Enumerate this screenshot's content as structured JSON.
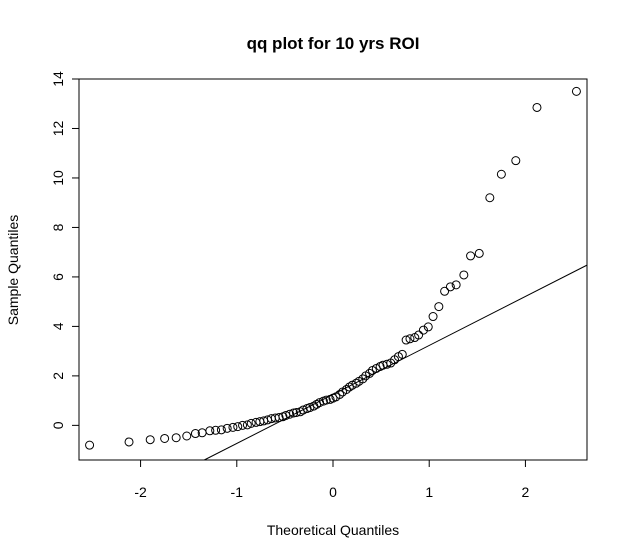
{
  "chart_data": {
    "type": "scatter",
    "title": "qq plot for 10 yrs ROI",
    "xlabel": "Theoretical Quantiles",
    "ylabel": "Sample Quantiles",
    "xlim": [
      -2.64,
      2.64
    ],
    "ylim": [
      -1.4,
      14.0
    ],
    "xticks": [
      -2,
      -1,
      0,
      1,
      2
    ],
    "xtick_labels": [
      "-2",
      "-1",
      "0",
      "1",
      "2"
    ],
    "yticks": [
      0,
      2,
      4,
      6,
      8,
      10,
      12,
      14
    ],
    "ytick_labels": [
      "0",
      "2",
      "4",
      "6",
      "8",
      "10",
      "12",
      "14"
    ],
    "grid": false,
    "legend": "none",
    "marker": "open-circle",
    "colors": {
      "points": "#000000",
      "line": "#000000",
      "frame": "#000000"
    },
    "reference_line": {
      "intercept": 1.25,
      "slope": 1.98
    },
    "points": [
      {
        "x": -2.53,
        "y": -0.8
      },
      {
        "x": -2.12,
        "y": -0.67
      },
      {
        "x": -1.9,
        "y": -0.58
      },
      {
        "x": -1.75,
        "y": -0.53
      },
      {
        "x": -1.63,
        "y": -0.5
      },
      {
        "x": -1.52,
        "y": -0.43
      },
      {
        "x": -1.43,
        "y": -0.33
      },
      {
        "x": -1.36,
        "y": -0.3
      },
      {
        "x": -1.28,
        "y": -0.22
      },
      {
        "x": -1.22,
        "y": -0.2
      },
      {
        "x": -1.16,
        "y": -0.18
      },
      {
        "x": -1.1,
        "y": -0.12
      },
      {
        "x": -1.04,
        "y": -0.08
      },
      {
        "x": -0.99,
        "y": -0.05
      },
      {
        "x": -0.94,
        "y": 0.0
      },
      {
        "x": -0.89,
        "y": 0.02
      },
      {
        "x": -0.85,
        "y": 0.08
      },
      {
        "x": -0.8,
        "y": 0.12
      },
      {
        "x": -0.76,
        "y": 0.15
      },
      {
        "x": -0.72,
        "y": 0.18
      },
      {
        "x": -0.68,
        "y": 0.22
      },
      {
        "x": -0.64,
        "y": 0.27
      },
      {
        "x": -0.6,
        "y": 0.3
      },
      {
        "x": -0.56,
        "y": 0.32
      },
      {
        "x": -0.52,
        "y": 0.35
      },
      {
        "x": -0.49,
        "y": 0.4
      },
      {
        "x": -0.45,
        "y": 0.45
      },
      {
        "x": -0.41,
        "y": 0.5
      },
      {
        "x": -0.38,
        "y": 0.52
      },
      {
        "x": -0.34,
        "y": 0.55
      },
      {
        "x": -0.31,
        "y": 0.62
      },
      {
        "x": -0.27,
        "y": 0.68
      },
      {
        "x": -0.24,
        "y": 0.72
      },
      {
        "x": -0.2,
        "y": 0.78
      },
      {
        "x": -0.17,
        "y": 0.85
      },
      {
        "x": -0.14,
        "y": 0.92
      },
      {
        "x": -0.1,
        "y": 0.98
      },
      {
        "x": -0.07,
        "y": 1.02
      },
      {
        "x": -0.03,
        "y": 1.05
      },
      {
        "x": 0.0,
        "y": 1.1
      },
      {
        "x": 0.03,
        "y": 1.15
      },
      {
        "x": 0.07,
        "y": 1.25
      },
      {
        "x": 0.1,
        "y": 1.35
      },
      {
        "x": 0.14,
        "y": 1.45
      },
      {
        "x": 0.17,
        "y": 1.55
      },
      {
        "x": 0.2,
        "y": 1.62
      },
      {
        "x": 0.24,
        "y": 1.7
      },
      {
        "x": 0.27,
        "y": 1.78
      },
      {
        "x": 0.31,
        "y": 1.88
      },
      {
        "x": 0.34,
        "y": 2.0
      },
      {
        "x": 0.38,
        "y": 2.1
      },
      {
        "x": 0.41,
        "y": 2.22
      },
      {
        "x": 0.45,
        "y": 2.3
      },
      {
        "x": 0.49,
        "y": 2.38
      },
      {
        "x": 0.52,
        "y": 2.43
      },
      {
        "x": 0.56,
        "y": 2.47
      },
      {
        "x": 0.6,
        "y": 2.52
      },
      {
        "x": 0.64,
        "y": 2.65
      },
      {
        "x": 0.68,
        "y": 2.78
      },
      {
        "x": 0.72,
        "y": 2.87
      },
      {
        "x": 0.76,
        "y": 3.45
      },
      {
        "x": 0.8,
        "y": 3.5
      },
      {
        "x": 0.85,
        "y": 3.55
      },
      {
        "x": 0.89,
        "y": 3.65
      },
      {
        "x": 0.94,
        "y": 3.85
      },
      {
        "x": 0.99,
        "y": 3.98
      },
      {
        "x": 1.04,
        "y": 4.4
      },
      {
        "x": 1.1,
        "y": 4.8
      },
      {
        "x": 1.16,
        "y": 5.42
      },
      {
        "x": 1.22,
        "y": 5.6
      },
      {
        "x": 1.28,
        "y": 5.68
      },
      {
        "x": 1.36,
        "y": 6.08
      },
      {
        "x": 1.43,
        "y": 6.85
      },
      {
        "x": 1.52,
        "y": 6.95
      },
      {
        "x": 1.63,
        "y": 9.2
      },
      {
        "x": 1.75,
        "y": 10.15
      },
      {
        "x": 1.9,
        "y": 10.7
      },
      {
        "x": 2.12,
        "y": 12.85
      },
      {
        "x": 2.53,
        "y": 13.5
      }
    ]
  }
}
